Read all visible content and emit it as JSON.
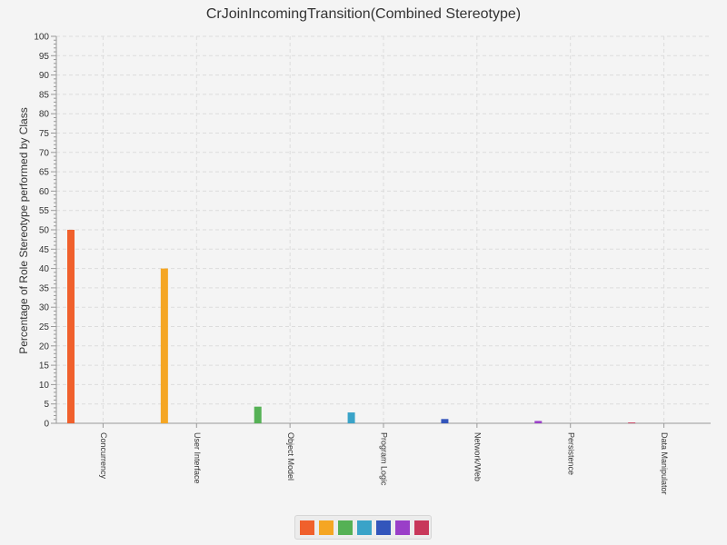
{
  "chart_data": {
    "type": "bar",
    "title": "CrJoinIncomingTransition(Combined Stereotype)",
    "xlabel": "",
    "ylabel": "Percentage of Role Stereotype performed by Class",
    "ylim": [
      0,
      100
    ],
    "ytick_step": 5,
    "grid": true,
    "legend_position": "bottom",
    "categories": [
      "Concurrency",
      "User Interface",
      "Object Model",
      "Program Logic",
      "Network/Web",
      "Persistence",
      "Data Manipulator"
    ],
    "values": [
      50,
      40,
      4.3,
      2.8,
      1.1,
      0.6,
      0.2
    ],
    "colors": [
      "#f0602c",
      "#f5a623",
      "#55b155",
      "#3aa3c8",
      "#3355bb",
      "#9a3fc8",
      "#c8385a"
    ]
  }
}
